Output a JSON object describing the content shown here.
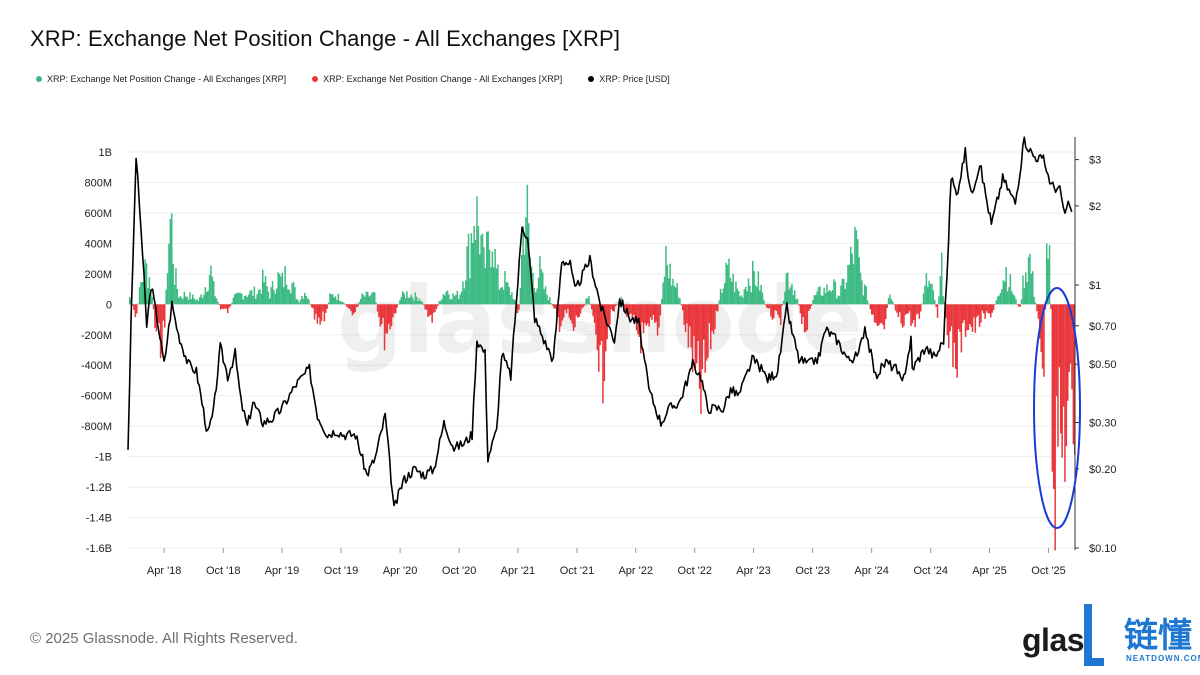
{
  "header": {
    "title": "XRP: Exchange Net Position Change - All Exchanges [XRP]"
  },
  "legend": [
    {
      "label": "XRP: Exchange Net Position Change - All Exchanges [XRP]",
      "color": "#3dbb83"
    },
    {
      "label": "XRP: Exchange Net Position Change - All Exchanges [XRP]",
      "color": "#e8363a"
    },
    {
      "label": "XRP: Price [USD]",
      "color": "#000000"
    }
  ],
  "watermark": "glassnode",
  "footer": {
    "copyright": "© 2025 Glassnode. All Rights Reserved."
  },
  "brand": {
    "left_text": "glas",
    "cn_text": "链懂",
    "sub_text": "NEATDOWN.COM"
  },
  "chart_data": {
    "type": "area",
    "colors": {
      "positive": "#3dbb83",
      "negative": "#e8363a",
      "price": "#000000",
      "highlight": "#1a3bd6"
    },
    "y_left": {
      "ticks": [
        "1B",
        "800M",
        "600M",
        "400M",
        "200M",
        "0",
        "-200M",
        "-400M",
        "-600M",
        "-800M",
        "-1B",
        "-1.2B",
        "-1.4B",
        "-1.6B"
      ],
      "range": [
        -1600000000,
        1000000000
      ]
    },
    "y_right": {
      "scale": "log",
      "ticks": [
        "$3",
        "$2",
        "$1",
        "$0.70",
        "$0.50",
        "$0.30",
        "$0.20",
        "$0.10"
      ],
      "tick_values": [
        3,
        2,
        1,
        0.7,
        0.5,
        0.3,
        0.2,
        0.1
      ],
      "range": [
        0.1,
        3.5
      ]
    },
    "x": {
      "range": [
        "2017-12-10",
        "2025-12-22"
      ],
      "ticks": [
        "Apr '18",
        "Oct '18",
        "Apr '19",
        "Oct '19",
        "Apr '20",
        "Oct '20",
        "Apr '21",
        "Oct '21",
        "Apr '22",
        "Oct '22",
        "Apr '23",
        "Oct '23",
        "Apr '24",
        "Oct '24",
        "Apr '25",
        "Oct '25"
      ],
      "tick_dates": [
        "2018-04-01",
        "2018-10-01",
        "2019-04-01",
        "2019-10-01",
        "2020-04-01",
        "2020-10-01",
        "2021-04-01",
        "2021-10-01",
        "2022-04-01",
        "2022-10-01",
        "2023-04-01",
        "2023-10-01",
        "2024-04-01",
        "2024-10-01",
        "2025-04-01",
        "2025-10-01"
      ]
    },
    "net_position": [
      [
        "2017-12-15",
        60000000
      ],
      [
        "2018-01-01",
        -130000000
      ],
      [
        "2018-01-15",
        150000000
      ],
      [
        "2018-02-01",
        300000000
      ],
      [
        "2018-02-15",
        200000000
      ],
      [
        "2018-03-01",
        -180000000
      ],
      [
        "2018-03-15",
        -320000000
      ],
      [
        "2018-04-01",
        -200000000
      ],
      [
        "2018-04-10",
        450000000
      ],
      [
        "2018-04-20",
        720000000
      ],
      [
        "2018-05-01",
        250000000
      ],
      [
        "2018-05-15",
        60000000
      ],
      [
        "2018-06-01",
        80000000
      ],
      [
        "2018-06-15",
        70000000
      ],
      [
        "2018-07-01",
        50000000
      ],
      [
        "2018-07-15",
        30000000
      ],
      [
        "2018-08-01",
        120000000
      ],
      [
        "2018-08-20",
        290000000
      ],
      [
        "2018-09-01",
        100000000
      ],
      [
        "2018-09-20",
        -30000000
      ],
      [
        "2018-10-15",
        -60000000
      ],
      [
        "2018-11-01",
        50000000
      ],
      [
        "2018-11-20",
        80000000
      ],
      [
        "2018-12-15",
        90000000
      ],
      [
        "2019-01-15",
        100000000
      ],
      [
        "2019-02-01",
        200000000
      ],
      [
        "2019-02-20",
        80000000
      ],
      [
        "2019-03-15",
        220000000
      ],
      [
        "2019-04-01",
        180000000
      ],
      [
        "2019-04-15",
        270000000
      ],
      [
        "2019-05-01",
        160000000
      ],
      [
        "2019-05-20",
        20000000
      ],
      [
        "2019-06-10",
        120000000
      ],
      [
        "2019-07-01",
        -50000000
      ],
      [
        "2019-07-20",
        -200000000
      ],
      [
        "2019-08-10",
        -100000000
      ],
      [
        "2019-08-25",
        60000000
      ],
      [
        "2019-09-10",
        80000000
      ],
      [
        "2019-10-01",
        40000000
      ],
      [
        "2019-10-20",
        -30000000
      ],
      [
        "2019-11-10",
        -80000000
      ],
      [
        "2019-12-01",
        60000000
      ],
      [
        "2019-12-20",
        70000000
      ],
      [
        "2020-01-10",
        80000000
      ],
      [
        "2020-01-25",
        -100000000
      ],
      [
        "2020-02-10",
        -250000000
      ],
      [
        "2020-03-01",
        -150000000
      ],
      [
        "2020-03-15",
        -60000000
      ],
      [
        "2020-04-01",
        60000000
      ],
      [
        "2020-04-20",
        90000000
      ],
      [
        "2020-05-10",
        70000000
      ],
      [
        "2020-06-01",
        50000000
      ],
      [
        "2020-06-20",
        -60000000
      ],
      [
        "2020-07-10",
        -120000000
      ],
      [
        "2020-08-01",
        50000000
      ],
      [
        "2020-08-20",
        120000000
      ],
      [
        "2020-09-10",
        70000000
      ],
      [
        "2020-10-01",
        80000000
      ],
      [
        "2020-10-20",
        350000000
      ],
      [
        "2020-11-01",
        450000000
      ],
      [
        "2020-11-15",
        800000000
      ],
      [
        "2020-12-01",
        600000000
      ],
      [
        "2020-12-15",
        300000000
      ],
      [
        "2021-01-01",
        500000000
      ],
      [
        "2021-01-10",
        650000000
      ],
      [
        "2021-01-20",
        300000000
      ],
      [
        "2021-02-01",
        150000000
      ],
      [
        "2021-02-15",
        200000000
      ],
      [
        "2021-03-01",
        120000000
      ],
      [
        "2021-03-15",
        80000000
      ],
      [
        "2021-04-01",
        -100000000
      ],
      [
        "2021-04-15",
        600000000
      ],
      [
        "2021-04-25",
        850000000
      ],
      [
        "2021-05-05",
        400000000
      ],
      [
        "2021-05-20",
        150000000
      ],
      [
        "2021-06-05",
        280000000
      ],
      [
        "2021-06-20",
        120000000
      ],
      [
        "2021-07-05",
        50000000
      ],
      [
        "2021-07-20",
        -50000000
      ],
      [
        "2021-08-05",
        -150000000
      ],
      [
        "2021-08-20",
        -100000000
      ],
      [
        "2021-09-01",
        -60000000
      ],
      [
        "2021-09-15",
        -240000000
      ],
      [
        "2021-10-01",
        -100000000
      ],
      [
        "2021-10-20",
        -50000000
      ],
      [
        "2021-11-01",
        120000000
      ],
      [
        "2021-11-15",
        -100000000
      ],
      [
        "2021-12-01",
        -250000000
      ],
      [
        "2021-12-15",
        -720000000
      ],
      [
        "2021-12-25",
        -300000000
      ],
      [
        "2022-01-10",
        -100000000
      ],
      [
        "2022-01-25",
        -40000000
      ],
      [
        "2022-02-10",
        60000000
      ],
      [
        "2022-03-01",
        -80000000
      ],
      [
        "2022-03-20",
        -150000000
      ],
      [
        "2022-04-10",
        -260000000
      ],
      [
        "2022-05-01",
        -300000000
      ],
      [
        "2022-05-20",
        -150000000
      ],
      [
        "2022-06-10",
        -200000000
      ],
      [
        "2022-07-01",
        380000000
      ],
      [
        "2022-07-20",
        200000000
      ],
      [
        "2022-08-10",
        100000000
      ],
      [
        "2022-09-01",
        -200000000
      ],
      [
        "2022-09-20",
        -400000000
      ],
      [
        "2022-10-01",
        -600000000
      ],
      [
        "2022-10-15",
        -750000000
      ],
      [
        "2022-11-01",
        -550000000
      ],
      [
        "2022-11-15",
        -300000000
      ],
      [
        "2022-12-01",
        -150000000
      ],
      [
        "2022-12-20",
        120000000
      ],
      [
        "2023-01-10",
        280000000
      ],
      [
        "2023-02-01",
        150000000
      ],
      [
        "2023-02-20",
        60000000
      ],
      [
        "2023-03-10",
        200000000
      ],
      [
        "2023-04-01",
        240000000
      ],
      [
        "2023-04-20",
        150000000
      ],
      [
        "2023-05-10",
        -50000000
      ],
      [
        "2023-06-01",
        -100000000
      ],
      [
        "2023-06-20",
        -150000000
      ],
      [
        "2023-07-10",
        250000000
      ],
      [
        "2023-07-25",
        180000000
      ],
      [
        "2023-08-10",
        80000000
      ],
      [
        "2023-08-25",
        -100000000
      ],
      [
        "2023-09-10",
        -200000000
      ],
      [
        "2023-10-01",
        50000000
      ],
      [
        "2023-10-20",
        100000000
      ],
      [
        "2023-11-10",
        120000000
      ],
      [
        "2023-12-01",
        150000000
      ],
      [
        "2023-12-20",
        80000000
      ],
      [
        "2024-01-10",
        200000000
      ],
      [
        "2024-01-25",
        350000000
      ],
      [
        "2024-02-10",
        500000000
      ],
      [
        "2024-02-25",
        200000000
      ],
      [
        "2024-03-15",
        80000000
      ],
      [
        "2024-04-01",
        -120000000
      ],
      [
        "2024-04-20",
        -280000000
      ],
      [
        "2024-05-10",
        -200000000
      ],
      [
        "2024-05-25",
        130000000
      ],
      [
        "2024-06-15",
        -80000000
      ],
      [
        "2024-07-01",
        -150000000
      ],
      [
        "2024-07-20",
        -60000000
      ],
      [
        "2024-08-10",
        -200000000
      ],
      [
        "2024-08-25",
        -100000000
      ],
      [
        "2024-09-15",
        180000000
      ],
      [
        "2024-10-01",
        150000000
      ],
      [
        "2024-10-20",
        -80000000
      ],
      [
        "2024-11-01",
        300000000
      ],
      [
        "2024-11-15",
        -100000000
      ],
      [
        "2024-12-01",
        -350000000
      ],
      [
        "2024-12-15",
        -450000000
      ],
      [
        "2025-01-01",
        -300000000
      ],
      [
        "2025-01-20",
        -150000000
      ],
      [
        "2025-02-10",
        -200000000
      ],
      [
        "2025-03-01",
        -130000000
      ],
      [
        "2025-03-20",
        -100000000
      ],
      [
        "2025-04-10",
        -60000000
      ],
      [
        "2025-05-01",
        150000000
      ],
      [
        "2025-05-20",
        280000000
      ],
      [
        "2025-06-10",
        100000000
      ],
      [
        "2025-07-01",
        -50000000
      ],
      [
        "2025-07-15",
        250000000
      ],
      [
        "2025-08-01",
        380000000
      ],
      [
        "2025-08-15",
        100000000
      ],
      [
        "2025-09-01",
        -200000000
      ],
      [
        "2025-09-15",
        -500000000
      ],
      [
        "2025-09-25",
        600000000
      ],
      [
        "2025-10-05",
        200000000
      ],
      [
        "2025-10-12",
        -1200000000
      ],
      [
        "2025-10-20",
        -1380000000
      ],
      [
        "2025-10-28",
        -900000000
      ],
      [
        "2025-11-05",
        -1300000000
      ],
      [
        "2025-11-15",
        -1000000000
      ],
      [
        "2025-11-25",
        -1100000000
      ],
      [
        "2025-12-05",
        -800000000
      ],
      [
        "2025-12-15",
        -1000000000
      ]
    ],
    "price": [
      [
        "2017-12-10",
        0.24
      ],
      [
        "2017-12-20",
        0.75
      ],
      [
        "2018-01-04",
        3.1
      ],
      [
        "2018-01-20",
        1.6
      ],
      [
        "2018-02-06",
        0.7
      ],
      [
        "2018-02-20",
        1.0
      ],
      [
        "2018-03-10",
        0.75
      ],
      [
        "2018-04-01",
        0.5
      ],
      [
        "2018-04-25",
        0.85
      ],
      [
        "2018-05-15",
        0.65
      ],
      [
        "2018-06-15",
        0.5
      ],
      [
        "2018-07-10",
        0.47
      ],
      [
        "2018-08-14",
        0.27
      ],
      [
        "2018-09-01",
        0.33
      ],
      [
        "2018-09-22",
        0.58
      ],
      [
        "2018-10-15",
        0.45
      ],
      [
        "2018-11-07",
        0.55
      ],
      [
        "2018-11-25",
        0.36
      ],
      [
        "2018-12-15",
        0.29
      ],
      [
        "2019-01-01",
        0.36
      ],
      [
        "2019-02-01",
        0.3
      ],
      [
        "2019-03-01",
        0.31
      ],
      [
        "2019-04-01",
        0.34
      ],
      [
        "2019-05-15",
        0.42
      ],
      [
        "2019-06-25",
        0.48
      ],
      [
        "2019-07-20",
        0.32
      ],
      [
        "2019-08-20",
        0.27
      ],
      [
        "2019-09-15",
        0.28
      ],
      [
        "2019-10-10",
        0.27
      ],
      [
        "2019-11-15",
        0.27
      ],
      [
        "2019-12-20",
        0.19
      ],
      [
        "2020-01-15",
        0.22
      ],
      [
        "2020-02-15",
        0.32
      ],
      [
        "2020-03-13",
        0.14
      ],
      [
        "2020-04-10",
        0.18
      ],
      [
        "2020-05-15",
        0.2
      ],
      [
        "2020-06-15",
        0.19
      ],
      [
        "2020-07-15",
        0.2
      ],
      [
        "2020-08-15",
        0.3
      ],
      [
        "2020-09-15",
        0.24
      ],
      [
        "2020-10-15",
        0.25
      ],
      [
        "2020-11-10",
        0.27
      ],
      [
        "2020-11-25",
        0.62
      ],
      [
        "2020-12-20",
        0.55
      ],
      [
        "2020-12-29",
        0.22
      ],
      [
        "2021-01-25",
        0.28
      ],
      [
        "2021-02-10",
        0.55
      ],
      [
        "2021-03-10",
        0.45
      ],
      [
        "2021-04-14",
        1.7
      ],
      [
        "2021-05-01",
        1.5
      ],
      [
        "2021-05-23",
        0.75
      ],
      [
        "2021-06-25",
        0.6
      ],
      [
        "2021-07-20",
        0.52
      ],
      [
        "2021-08-15",
        1.25
      ],
      [
        "2021-09-10",
        1.2
      ],
      [
        "2021-09-25",
        0.95
      ],
      [
        "2021-11-10",
        1.25
      ],
      [
        "2021-12-15",
        0.82
      ],
      [
        "2022-01-25",
        0.62
      ],
      [
        "2022-02-10",
        0.88
      ],
      [
        "2022-03-15",
        0.75
      ],
      [
        "2022-04-10",
        0.72
      ],
      [
        "2022-05-12",
        0.4
      ],
      [
        "2022-06-18",
        0.3
      ],
      [
        "2022-07-15",
        0.34
      ],
      [
        "2022-08-15",
        0.36
      ],
      [
        "2022-09-25",
        0.5
      ],
      [
        "2022-10-20",
        0.45
      ],
      [
        "2022-11-10",
        0.34
      ],
      [
        "2022-12-28",
        0.34
      ],
      [
        "2023-01-20",
        0.4
      ],
      [
        "2023-02-15",
        0.38
      ],
      [
        "2023-03-28",
        0.52
      ],
      [
        "2023-04-15",
        0.5
      ],
      [
        "2023-05-15",
        0.44
      ],
      [
        "2023-06-15",
        0.47
      ],
      [
        "2023-07-13",
        0.82
      ],
      [
        "2023-07-25",
        0.7
      ],
      [
        "2023-08-20",
        0.52
      ],
      [
        "2023-09-20",
        0.5
      ],
      [
        "2023-10-20",
        0.53
      ],
      [
        "2023-11-10",
        0.68
      ],
      [
        "2023-12-15",
        0.62
      ],
      [
        "2024-01-20",
        0.52
      ],
      [
        "2024-02-20",
        0.54
      ],
      [
        "2024-03-11",
        0.7
      ],
      [
        "2024-04-13",
        0.45
      ],
      [
        "2024-05-15",
        0.51
      ],
      [
        "2024-06-15",
        0.48
      ],
      [
        "2024-07-05",
        0.42
      ],
      [
        "2024-08-01",
        0.62
      ],
      [
        "2024-08-05",
        0.48
      ],
      [
        "2024-09-15",
        0.58
      ],
      [
        "2024-10-15",
        0.53
      ],
      [
        "2024-11-10",
        0.62
      ],
      [
        "2024-11-25",
        1.45
      ],
      [
        "2024-12-03",
        2.6
      ],
      [
        "2024-12-20",
        2.2
      ],
      [
        "2025-01-16",
        3.2
      ],
      [
        "2025-02-03",
        2.2
      ],
      [
        "2025-03-02",
        2.9
      ],
      [
        "2025-04-07",
        1.7
      ],
      [
        "2025-05-12",
        2.55
      ],
      [
        "2025-06-20",
        2.05
      ],
      [
        "2025-07-18",
        3.55
      ],
      [
        "2025-08-15",
        3.1
      ],
      [
        "2025-09-15",
        3.0
      ],
      [
        "2025-10-10",
        2.4
      ],
      [
        "2025-11-05",
        2.3
      ],
      [
        "2025-11-21",
        1.85
      ],
      [
        "2025-12-01",
        2.0
      ],
      [
        "2025-12-12",
        1.9
      ]
    ]
  }
}
